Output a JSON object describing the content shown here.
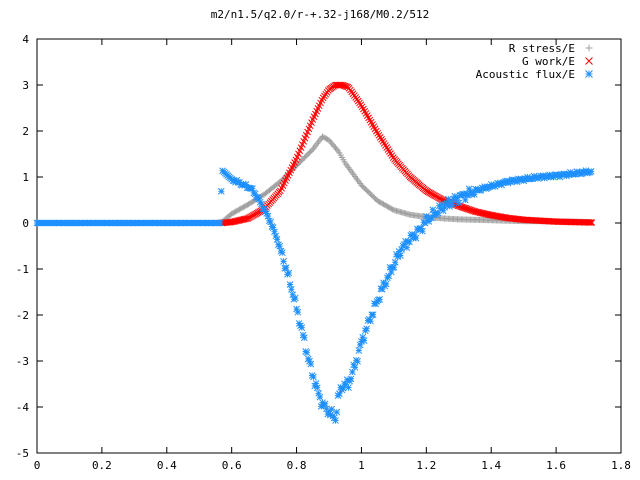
{
  "chart_data": {
    "type": "scatter",
    "title": "m2/n1.5/q2.0/r-+.32-j168/M0.2/512",
    "xlabel": "",
    "ylabel": "",
    "xlim": [
      0,
      1.8
    ],
    "ylim": [
      -5,
      4
    ],
    "xticks": [
      0,
      0.2,
      0.4,
      0.6,
      0.8,
      1,
      1.2,
      1.4,
      1.6,
      1.8
    ],
    "xtick_labels": [
      "0",
      "0.2",
      "0.4",
      "0.6",
      "0.8",
      "1",
      "1.2",
      "1.4",
      "1.6",
      "1.8"
    ],
    "yticks": [
      -5,
      -4,
      -3,
      -2,
      -1,
      0,
      1,
      2,
      3,
      4
    ],
    "ytick_labels": [
      "-5",
      "-4",
      "-3",
      "-2",
      "-1",
      "0",
      "1",
      "2",
      "3",
      "4"
    ],
    "grid": false,
    "legend_position": "top-right",
    "series": [
      {
        "name": "R stress/E",
        "marker": "+",
        "color": "#a0a0a0",
        "x": [
          0,
          0.05,
          0.1,
          0.15,
          0.2,
          0.25,
          0.3,
          0.35,
          0.4,
          0.45,
          0.5,
          0.55,
          0.57,
          0.6,
          0.65,
          0.7,
          0.75,
          0.8,
          0.85,
          0.88,
          0.9,
          0.93,
          0.95,
          1,
          1.05,
          1.1,
          1.15,
          1.2,
          1.25,
          1.3,
          1.35,
          1.4,
          1.45,
          1.5,
          1.55,
          1.6,
          1.65,
          1.71
        ],
        "y": [
          0,
          0,
          0,
          0,
          0,
          0,
          0,
          0,
          0,
          0,
          0,
          0,
          0.02,
          0.2,
          0.4,
          0.62,
          0.9,
          1.25,
          1.6,
          1.88,
          1.8,
          1.55,
          1.3,
          0.82,
          0.48,
          0.28,
          0.18,
          0.13,
          0.1,
          0.08,
          0.07,
          0.06,
          0.05,
          0.04,
          0.04,
          0.03,
          0.03,
          0.02
        ]
      },
      {
        "name": "G work/E",
        "marker": "x",
        "color": "#ff0000",
        "x": [
          0.57,
          0.6,
          0.65,
          0.7,
          0.75,
          0.8,
          0.85,
          0.88,
          0.9,
          0.92,
          0.94,
          0.96,
          1,
          1.05,
          1.1,
          1.15,
          1.2,
          1.25,
          1.3,
          1.35,
          1.4,
          1.45,
          1.5,
          1.55,
          1.6,
          1.65,
          1.71
        ],
        "y": [
          0,
          0.02,
          0.1,
          0.3,
          0.7,
          1.4,
          2.25,
          2.7,
          2.9,
          3,
          3,
          2.95,
          2.55,
          1.95,
          1.4,
          1,
          0.7,
          0.5,
          0.37,
          0.25,
          0.17,
          0.11,
          0.07,
          0.05,
          0.03,
          0.02,
          0.01
        ]
      },
      {
        "name": "Acoustic flux/E",
        "marker": "*",
        "color": "#1e90ff",
        "x": [
          0,
          0.05,
          0.1,
          0.15,
          0.2,
          0.25,
          0.3,
          0.35,
          0.4,
          0.45,
          0.5,
          0.55,
          0.565,
          0.57,
          0.6,
          0.63,
          0.66,
          0.68,
          0.7,
          0.72,
          0.74,
          0.76,
          0.78,
          0.8,
          0.82,
          0.84,
          0.86,
          0.88,
          0.9,
          0.92,
          0.93,
          0.94,
          0.96,
          0.98,
          1,
          1.02,
          1.04,
          1.06,
          1.08,
          1.1,
          1.12,
          1.15,
          1.18,
          1.2,
          1.25,
          1.3,
          1.35,
          1.4,
          1.45,
          1.5,
          1.55,
          1.6,
          1.65,
          1.71
        ],
        "y": [
          0,
          0,
          0,
          0,
          0,
          0,
          0,
          0,
          0,
          0,
          0,
          0,
          0,
          1.15,
          0.95,
          0.85,
          0.75,
          0.55,
          0.3,
          0.02,
          -0.35,
          -0.8,
          -1.3,
          -1.85,
          -2.45,
          -3.05,
          -3.55,
          -3.95,
          -4.1,
          -4.25,
          -3.75,
          -3.55,
          -3.5,
          -3.1,
          -2.6,
          -2.2,
          -1.85,
          -1.5,
          -1.2,
          -0.9,
          -0.6,
          -0.35,
          -0.15,
          0.05,
          0.35,
          0.55,
          0.7,
          0.8,
          0.9,
          0.95,
          1,
          1.03,
          1.07,
          1.12
        ]
      }
    ]
  }
}
